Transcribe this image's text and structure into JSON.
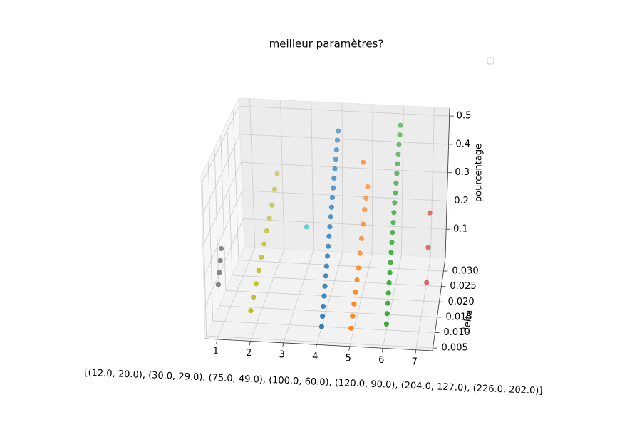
{
  "chart_data": {
    "type": "scatter3d",
    "title": "meilleur paramètres?",
    "xlabel": "[(12.0, 20.0), (30.0, 29.0), (75.0, 49.0), (100.0, 60.0), (120.0, 90.0), (204.0, 127.0), (226.0, 202.0)]",
    "ylabel": "delta",
    "zlabel": "pourcentage",
    "xlim": [
      0.64,
      7.5
    ],
    "ylim": [
      0.0041,
      0.0344
    ],
    "zlim": [
      0,
      0.528
    ],
    "xticks": [
      1,
      2,
      3,
      4,
      5,
      6,
      7
    ],
    "yticks": [
      0.005,
      {
        "value": 0.01,
        "label": "0.010"
      },
      0.015,
      {
        "value": 0.02,
        "label": "0.020"
      },
      0.025,
      {
        "value": 0.03,
        "label": "0.030"
      }
    ],
    "zticks": [
      0.1,
      0.2,
      0.3,
      0.4,
      0.5
    ],
    "grid": true,
    "series": [
      {
        "color": "#7f7f7f",
        "x": [
          1,
          1,
          1,
          1
        ],
        "y": [
          0.006,
          0.007,
          0.008,
          0.009
        ],
        "z": [
          0.16,
          0.19,
          0.22,
          0.25
        ]
      },
      {
        "color": "#bcbd22",
        "x": [
          2,
          2,
          2,
          2,
          2,
          2,
          2,
          2,
          2,
          2,
          2
        ],
        "y": [
          0.005,
          0.0075,
          0.01,
          0.0125,
          0.015,
          0.0175,
          0.02,
          0.0225,
          0.025,
          0.0275,
          0.03
        ],
        "z": [
          0.09,
          0.11,
          0.13,
          0.15,
          0.17,
          0.19,
          0.21,
          0.23,
          0.25,
          0.28,
          0.31
        ]
      },
      {
        "color": "#17becf",
        "x": [
          3
        ],
        "y": [
          0.028
        ],
        "z": [
          0.15
        ]
      },
      {
        "color": "#1f77b4",
        "x": [
          4,
          4,
          4,
          4,
          4,
          4,
          4,
          4,
          4,
          4,
          4,
          4,
          4,
          4,
          4,
          4,
          4,
          4,
          4,
          4,
          4
        ],
        "y": [
          0.01,
          0.011,
          0.012,
          0.013,
          0.014,
          0.015,
          0.016,
          0.017,
          0.018,
          0.019,
          0.02,
          0.021,
          0.022,
          0.023,
          0.024,
          0.025,
          0.026,
          0.027,
          0.028,
          0.029,
          0.03
        ],
        "z": [
          0,
          0.024,
          0.047,
          0.071,
          0.094,
          0.118,
          0.141,
          0.165,
          0.188,
          0.212,
          0.235,
          0.259,
          0.282,
          0.306,
          0.329,
          0.353,
          0.376,
          0.4,
          0.423,
          0.447,
          0.47
        ]
      },
      {
        "color": "#ff7f0e",
        "x": [
          5,
          5,
          5,
          5,
          5,
          5,
          5,
          5,
          5,
          5,
          5,
          5,
          5
        ],
        "y": [
          0.006,
          0.008,
          0.01,
          0.012,
          0.014,
          0.016,
          0.018,
          0.02,
          0.022,
          0.024,
          0.026,
          0.028,
          0.022
        ],
        "z": [
          0.04,
          0.06,
          0.08,
          0.1,
          0.12,
          0.14,
          0.17,
          0.2,
          0.23,
          0.26,
          0.28,
          0.3,
          0.44
        ]
      },
      {
        "color": "#2ca02c",
        "x": [
          6,
          6,
          6,
          6,
          6,
          6,
          6,
          6,
          6,
          6,
          6,
          6,
          6,
          6,
          6,
          6,
          6,
          6,
          6,
          6,
          6
        ],
        "y": [
          0.01,
          0.011,
          0.012,
          0.013,
          0.014,
          0.015,
          0.016,
          0.017,
          0.018,
          0.019,
          0.02,
          0.021,
          0.022,
          0.023,
          0.024,
          0.025,
          0.026,
          0.027,
          0.028,
          0.029,
          0.03
        ],
        "z": [
          0.02,
          0.044,
          0.068,
          0.092,
          0.116,
          0.14,
          0.164,
          0.188,
          0.212,
          0.236,
          0.26,
          0.284,
          0.308,
          0.332,
          0.356,
          0.38,
          0.404,
          0.428,
          0.452,
          0.476,
          0.5
        ]
      },
      {
        "color": "#d62728",
        "x": [
          7,
          7,
          7
        ],
        "y": [
          0.026,
          0.028,
          0.03
        ],
        "z": [
          0,
          0.1,
          0.2
        ]
      }
    ]
  }
}
